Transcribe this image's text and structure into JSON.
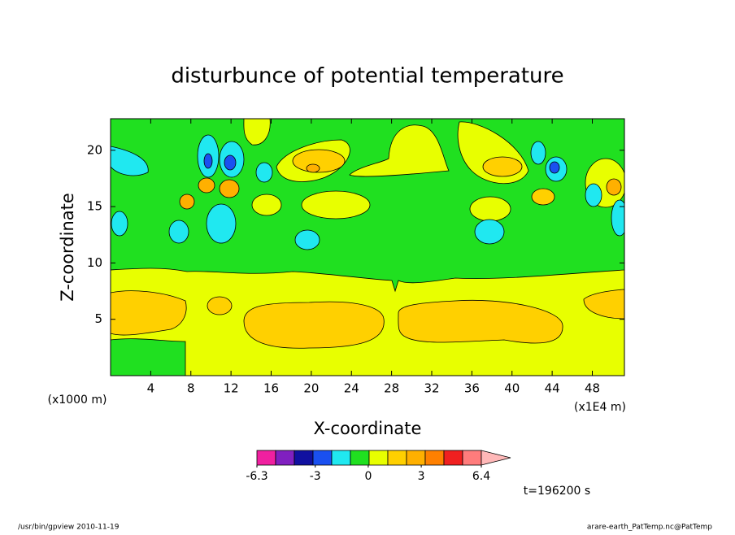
{
  "chart_data": {
    "type": "contour",
    "title": "disturbunce of potential temperature",
    "xlabel": "X-coordinate",
    "ylabel": "Z-coordinate",
    "x_unit_label": "(x1E4 m)",
    "y_unit_label": "(x1000 m)",
    "xlim": [
      0,
      51.2
    ],
    "xticks": [
      4,
      8,
      12,
      16,
      20,
      24,
      28,
      32,
      36,
      40,
      44,
      48
    ],
    "ylim": [
      0,
      22.8
    ],
    "yticks": [
      5,
      10,
      15,
      20
    ],
    "colorbar": {
      "clim": [
        -6.3,
        6.4
      ],
      "ticks": [
        -6.3,
        -3,
        0,
        3,
        6.4
      ],
      "colors": [
        "#f020a0",
        "#8020c0",
        "#1010a0",
        "#1a50f0",
        "#20e8f0",
        "#20e020",
        "#e8ff00",
        "#ffd000",
        "#ffb000",
        "#ff8000",
        "#f02020",
        "#ff7c7c"
      ],
      "extend_color": "#ffb8b8"
    },
    "time_label": "t=196200 s",
    "footer_left": "/usr/bin/gpview   2010-11-19",
    "footer_right": "arare-earth_PatTemp.nc@PatTemp"
  }
}
